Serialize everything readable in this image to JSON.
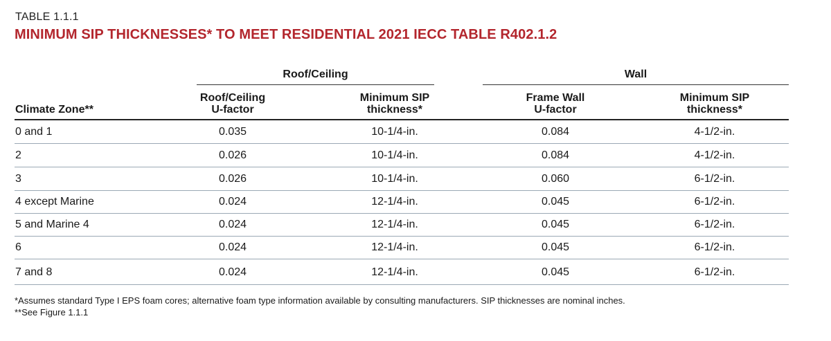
{
  "table_label": "TABLE 1.1.1",
  "title": "MINIMUM SIP THICKNESSES* TO MEET RESIDENTIAL 2021 IECC TABLE R402.1.2",
  "groups": {
    "roof": "Roof/Ceiling",
    "wall": "Wall"
  },
  "headers": {
    "zone": "Climate Zone**",
    "roof_u_line1": "Roof/Ceiling",
    "roof_u_line2": "U-factor",
    "roof_sip_line1": "Minimum SIP",
    "roof_sip_line2": "thickness*",
    "wall_u_line1": "Frame Wall",
    "wall_u_line2": "U-factor",
    "wall_sip_line1": "Minimum SIP",
    "wall_sip_line2": "thickness*"
  },
  "rows": [
    {
      "zone": "0 and 1",
      "roof_u": "0.035",
      "roof_sip": "10-1/4-in.",
      "wall_u": "0.084",
      "wall_sip": "4-1/2-in."
    },
    {
      "zone": "2",
      "roof_u": "0.026",
      "roof_sip": "10-1/4-in.",
      "wall_u": "0.084",
      "wall_sip": "4-1/2-in."
    },
    {
      "zone": "3",
      "roof_u": "0.026",
      "roof_sip": "10-1/4-in.",
      "wall_u": "0.060",
      "wall_sip": "6-1/2-in."
    },
    {
      "zone": "4 except Marine",
      "roof_u": "0.024",
      "roof_sip": "12-1/4-in.",
      "wall_u": "0.045",
      "wall_sip": "6-1/2-in."
    },
    {
      "zone": "5 and Marine 4",
      "roof_u": "0.024",
      "roof_sip": "12-1/4-in.",
      "wall_u": "0.045",
      "wall_sip": "6-1/2-in."
    },
    {
      "zone": "6",
      "roof_u": "0.024",
      "roof_sip": "12-1/4-in.",
      "wall_u": "0.045",
      "wall_sip": "6-1/2-in."
    },
    {
      "zone": "7 and 8",
      "roof_u": "0.024",
      "roof_sip": "12-1/4-in.",
      "wall_u": "0.045",
      "wall_sip": "6-1/2-in."
    }
  ],
  "footnotes": [
    "*Assumes standard Type I EPS foam cores; alternative foam type information available by consulting manufacturers. SIP thicknesses are nominal inches.",
    "**See Figure 1.1.1"
  ],
  "colors": {
    "title": "#b3262d",
    "row_rule": "#9aa8b4"
  }
}
